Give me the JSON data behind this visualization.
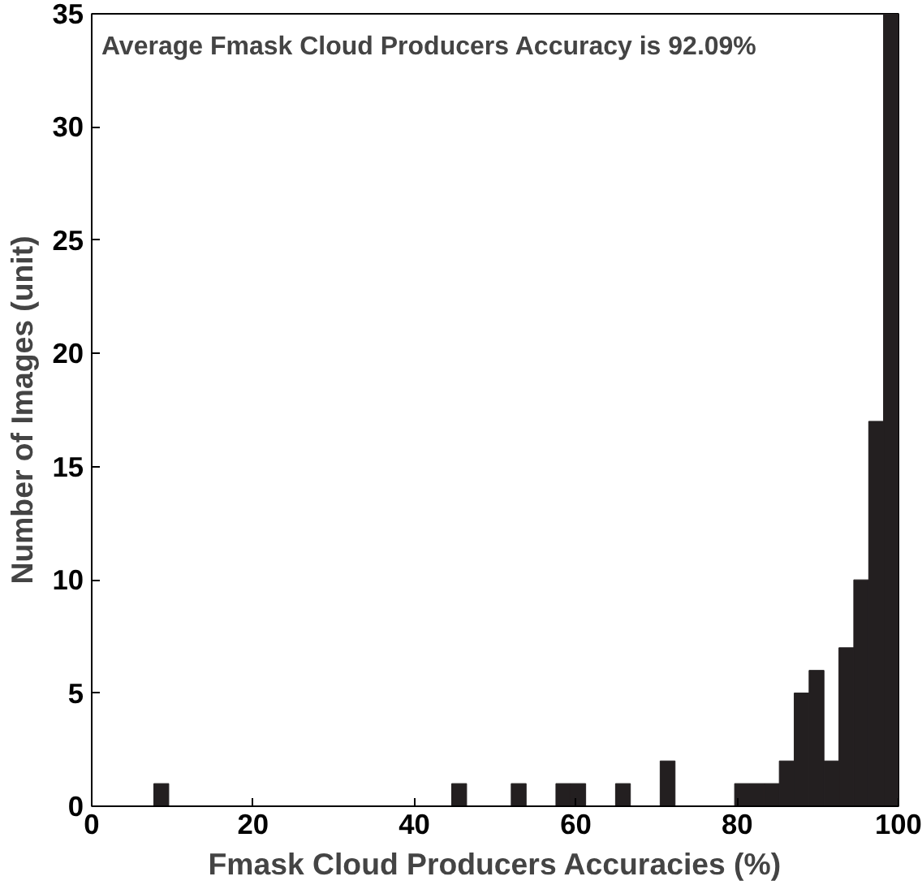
{
  "chart_data": {
    "type": "histogram",
    "xlabel": "Fmask Cloud Producers Accuracies (%)",
    "ylabel": "Number of Images (unit)",
    "annotations": [
      "Average Fmask Cloud Producers Accuracy is 92.09%"
    ],
    "bins": [
      7.7,
      9.55,
      11.39,
      13.24,
      15.08,
      16.93,
      18.78,
      20.62,
      22.47,
      24.31,
      26.16,
      28.01,
      29.85,
      31.7,
      33.54,
      35.39,
      37.24,
      39.08,
      40.93,
      42.77,
      44.62,
      46.47,
      48.31,
      50.16,
      52.0,
      53.85,
      55.7,
      57.54,
      59.39,
      61.23,
      63.08,
      64.93,
      66.77,
      68.62,
      70.46,
      72.31,
      74.16,
      76.0,
      77.85,
      79.69,
      81.54,
      83.39,
      85.23,
      87.08,
      88.92,
      90.77,
      92.62,
      94.46,
      96.31,
      98.15,
      100.0
    ],
    "values": [
      1,
      0,
      0,
      0,
      0,
      0,
      0,
      0,
      0,
      0,
      0,
      0,
      0,
      0,
      0,
      0,
      0,
      0,
      0,
      0,
      1,
      0,
      0,
      0,
      1,
      0,
      0,
      1,
      1,
      0,
      0,
      1,
      0,
      0,
      2,
      0,
      0,
      0,
      0,
      1,
      1,
      1,
      2,
      5,
      6,
      2,
      7,
      10,
      17,
      35
    ],
    "color": "#231f20",
    "xlim": [
      0,
      100
    ],
    "xticks": [
      0,
      20,
      40,
      60,
      80,
      100
    ],
    "ylim": [
      0,
      35
    ],
    "yticks": [
      0,
      5,
      10,
      15,
      20,
      25,
      30,
      35
    ],
    "grid": false
  }
}
